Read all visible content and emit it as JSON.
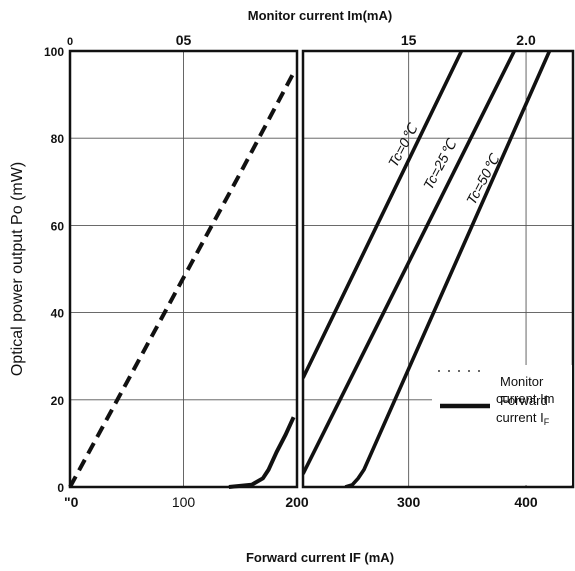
{
  "chart_data": {
    "type": "line",
    "title": "",
    "ylabel": "Optical power output Po (mW)",
    "xlabel_bottom": "Forward current  IF (mA)",
    "xlabel_top": "Monitor  current  Im(mA)",
    "ylim": [
      0,
      100
    ],
    "yticks": [
      "0",
      "20",
      "40",
      "60",
      "80",
      "100"
    ],
    "left_panel": {
      "xlim": [
        0,
        200
      ],
      "bottom_ticks": [
        "\"0",
        "100",
        "200"
      ],
      "top_ticks": [
        "0",
        "05"
      ],
      "series": [
        {
          "name": "Monitor current Im",
          "style": "dashed",
          "points": [
            [
              0,
              0
            ],
            [
              50,
              24
            ],
            [
              100,
              48
            ],
            [
              150,
              72
            ],
            [
              197,
              95
            ]
          ]
        },
        {
          "name": "Forward current IF",
          "style": "solid",
          "points": [
            [
              140,
              0
            ],
            [
              160,
              0.5
            ],
            [
              170,
              2
            ],
            [
              175,
              4
            ],
            [
              182,
              8
            ],
            [
              190,
              12
            ],
            [
              197,
              16
            ]
          ]
        }
      ]
    },
    "right_panel": {
      "xlim": [
        210,
        440
      ],
      "bottom_ticks": [
        "300",
        "400"
      ],
      "top_ticks": [
        "15",
        "2.0"
      ],
      "series": [
        {
          "name": "Tc=0℃",
          "points": [
            [
              210,
              25
            ],
            [
              345,
              100
            ]
          ]
        },
        {
          "name": "Tc=25℃",
          "points": [
            [
              210,
              3
            ],
            [
              390,
              100
            ]
          ]
        },
        {
          "name": "Tc=50℃",
          "points": [
            [
              246,
              0
            ],
            [
              252,
              0.5
            ],
            [
              257,
              2
            ],
            [
              262,
              4
            ],
            [
              420,
              100
            ]
          ]
        }
      ]
    },
    "legend": {
      "placement": "bottom-right",
      "entries": [
        {
          "line1": "Monitor",
          "line2": "current Im",
          "style": "dotted"
        },
        {
          "line1": "Forward",
          "line2": "current I",
          "sub": "F",
          "style": "solid"
        }
      ]
    },
    "grid": true
  }
}
